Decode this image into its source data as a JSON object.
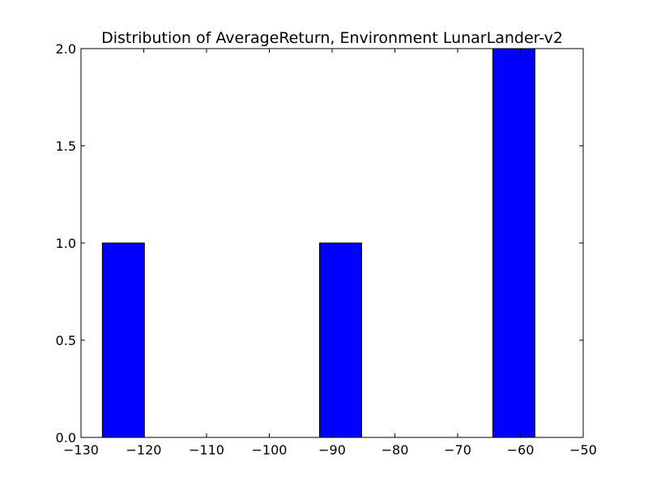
{
  "chart_data": {
    "type": "bar",
    "title": "Distribution of AverageReturn, Environment LunarLander-v2",
    "xlabel": "",
    "ylabel": "",
    "xlim": [
      -130,
      -50
    ],
    "ylim": [
      0,
      2.0
    ],
    "x_ticks": [
      -130,
      -120,
      -110,
      -100,
      -90,
      -80,
      -70,
      -60,
      -50
    ],
    "x_tick_labels": [
      "−130",
      "−120",
      "−110",
      "−100",
      "−90",
      "−80",
      "−70",
      "−60",
      "−50"
    ],
    "y_ticks": [
      0,
      0.5,
      1.0,
      1.5,
      2.0
    ],
    "y_tick_labels": [
      "0.0",
      "0.5",
      "1.0",
      "1.5",
      "2.0"
    ],
    "grid": false,
    "bars": [
      {
        "x0": -126.6,
        "x1": -119.9,
        "value": 1
      },
      {
        "x0": -92.0,
        "x1": -85.3,
        "value": 1
      },
      {
        "x0": -64.4,
        "x1": -57.7,
        "value": 2
      }
    ],
    "colors": {
      "bar_fill": "#0000ff",
      "bar_edge": "#000000",
      "axes": "#000000",
      "background": "#ffffff"
    }
  }
}
